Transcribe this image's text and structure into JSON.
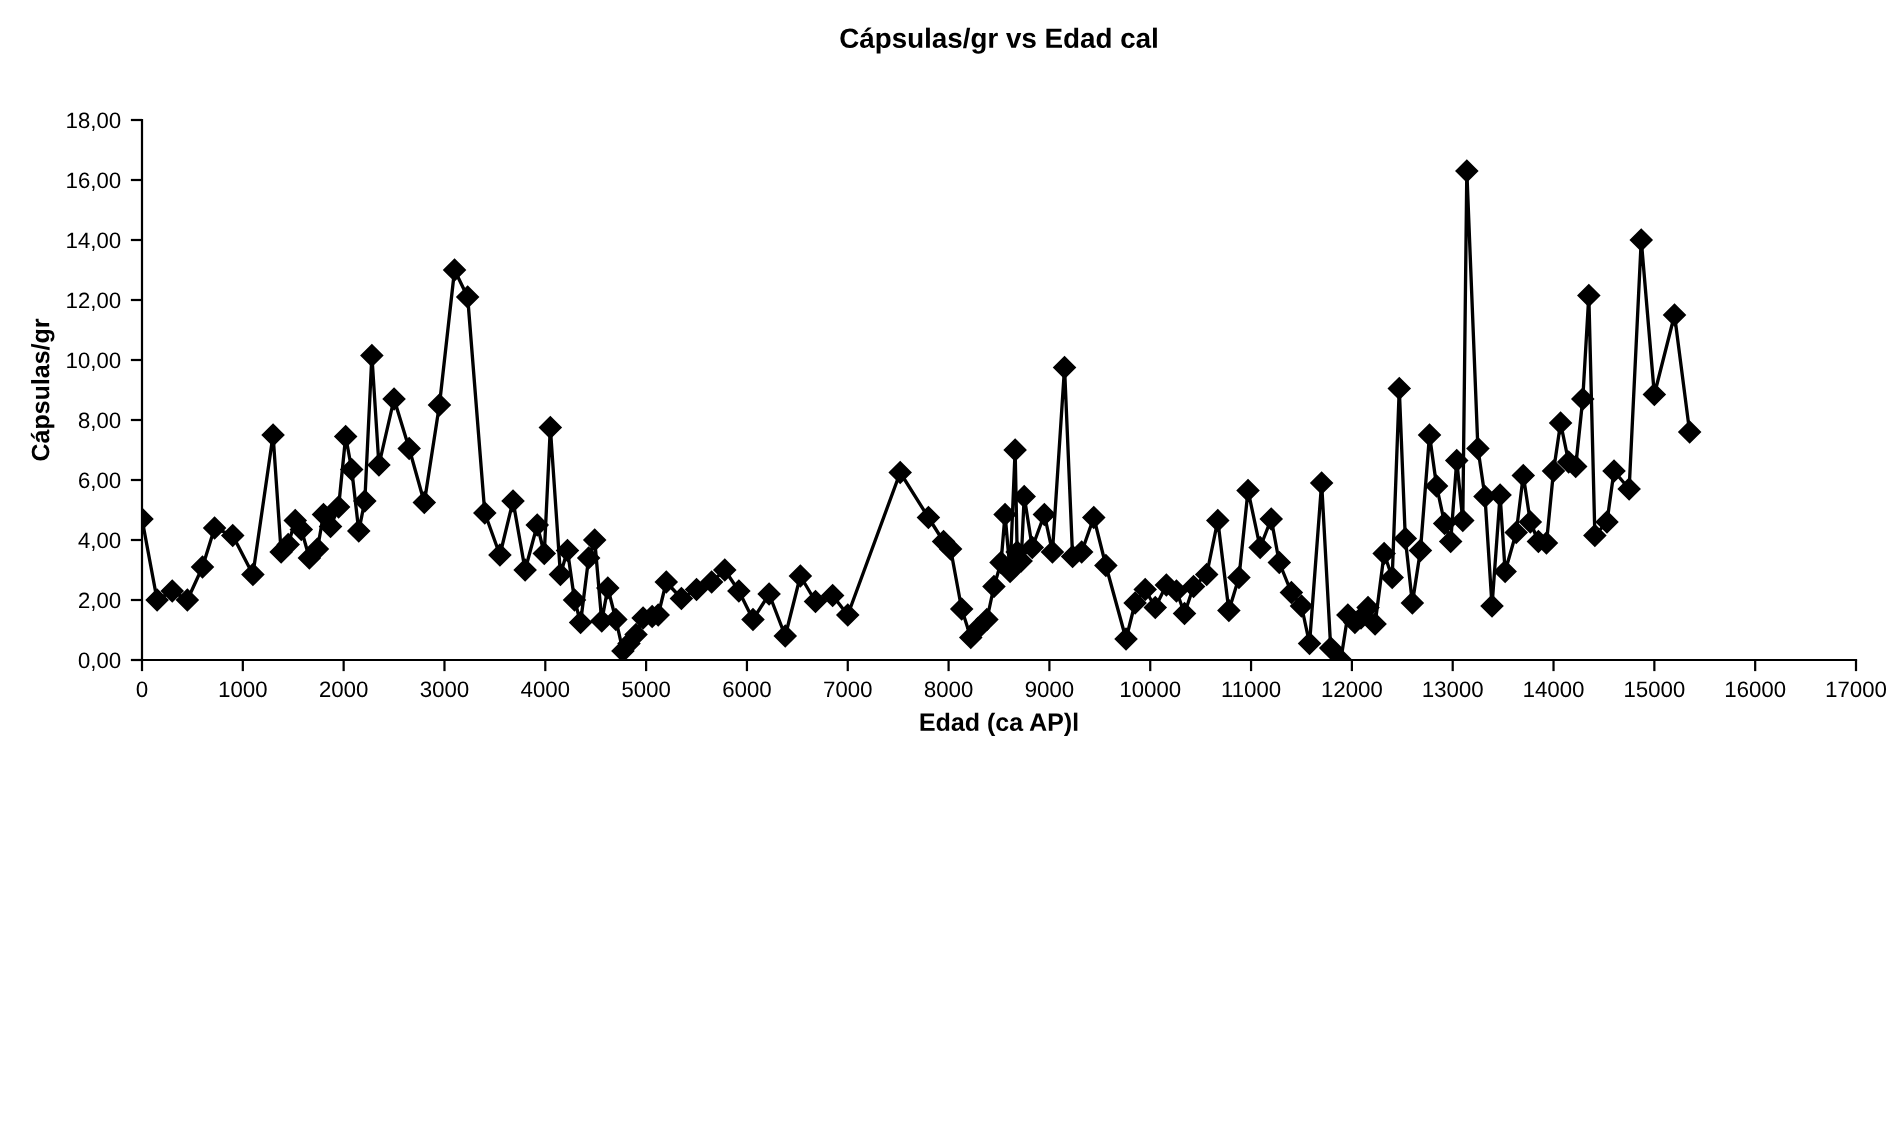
{
  "chart_data": {
    "type": "line",
    "title": "Cápsulas/gr vs Edad cal",
    "xlabel": "Edad (ca AP)l",
    "ylabel": "Cápsulas/gr",
    "x": [
      0,
      150,
      300,
      450,
      600,
      720,
      900,
      1100,
      1300,
      1380,
      1450,
      1520,
      1580,
      1660,
      1740,
      1800,
      1870,
      1950,
      2020,
      2080,
      2150,
      2210,
      2280,
      2350,
      2500,
      2650,
      2800,
      2950,
      3100,
      3230,
      3400,
      3550,
      3680,
      3800,
      3920,
      3990,
      4050,
      4150,
      4220,
      4290,
      4350,
      4430,
      4490,
      4560,
      4620,
      4700,
      4770,
      4830,
      4900,
      4970,
      5060,
      5120,
      5200,
      5350,
      5500,
      5650,
      5780,
      5920,
      6060,
      6220,
      6380,
      6530,
      6680,
      6850,
      7000,
      7520,
      7800,
      7950,
      8020,
      8130,
      8220,
      8290,
      8380,
      8450,
      8520,
      8560,
      8610,
      8660,
      8680,
      8720,
      8750,
      8830,
      8950,
      9030,
      9150,
      9230,
      9320,
      9440,
      9560,
      9760,
      9850,
      9950,
      10050,
      10160,
      10260,
      10340,
      10430,
      10560,
      10670,
      10780,
      10880,
      10970,
      11090,
      11200,
      11280,
      11400,
      11500,
      11580,
      11700,
      11790,
      11890,
      11960,
      12030,
      12090,
      12160,
      12230,
      12320,
      12400,
      12470,
      12530,
      12600,
      12680,
      12770,
      12840,
      12920,
      12980,
      13040,
      13100,
      13140,
      13250,
      13320,
      13390,
      13470,
      13520,
      13630,
      13700,
      13770,
      13850,
      13930,
      14000,
      14070,
      14150,
      14220,
      14290,
      14350,
      14410,
      14530,
      14600,
      14750,
      14870,
      15000,
      15200,
      15350
    ],
    "series": [
      {
        "color": "#000000",
        "values": [
          4.7,
          2.0,
          2.3,
          2.0,
          3.1,
          4.4,
          4.15,
          2.85,
          7.5,
          3.6,
          3.85,
          4.65,
          4.35,
          3.4,
          3.7,
          4.85,
          4.45,
          5.1,
          7.45,
          6.35,
          4.3,
          5.3,
          10.15,
          6.5,
          8.7,
          7.05,
          5.25,
          8.5,
          13.0,
          12.1,
          4.9,
          3.5,
          5.3,
          3.0,
          4.5,
          3.55,
          7.75,
          2.85,
          3.65,
          2.0,
          1.25,
          3.4,
          4.0,
          1.3,
          2.4,
          1.35,
          0.3,
          0.55,
          0.85,
          1.4,
          1.45,
          1.5,
          2.6,
          2.05,
          2.35,
          2.6,
          3.0,
          2.3,
          1.35,
          2.2,
          0.8,
          2.8,
          1.95,
          2.15,
          1.5,
          6.25,
          4.75,
          3.95,
          3.7,
          1.7,
          0.75,
          1.05,
          1.35,
          2.45,
          3.25,
          4.85,
          2.95,
          7.0,
          3.6,
          3.3,
          5.45,
          3.75,
          4.85,
          3.6,
          9.75,
          3.45,
          3.6,
          4.75,
          3.15,
          0.7,
          1.9,
          2.35,
          1.75,
          2.5,
          2.3,
          1.55,
          2.45,
          2.85,
          4.65,
          1.65,
          2.75,
          5.65,
          3.75,
          4.7,
          3.25,
          2.25,
          1.8,
          0.55,
          5.9,
          0.4,
          0.0,
          1.5,
          1.25,
          1.4,
          1.75,
          1.2,
          3.55,
          2.75,
          9.05,
          4.05,
          1.9,
          3.65,
          7.5,
          5.8,
          4.55,
          3.95,
          6.65,
          4.65,
          16.3,
          7.05,
          5.45,
          1.8,
          5.5,
          2.95,
          4.25,
          6.15,
          4.6,
          3.95,
          3.9,
          6.3,
          7.9,
          6.6,
          6.45,
          8.7,
          12.15,
          4.15,
          4.6,
          6.3,
          5.7,
          14.0,
          8.85,
          11.5,
          7.6
        ]
      }
    ],
    "xlim": [
      0,
      17000
    ],
    "xticks": [
      0,
      1000,
      2000,
      3000,
      4000,
      5000,
      6000,
      7000,
      8000,
      9000,
      10000,
      11000,
      12000,
      13000,
      14000,
      15000,
      16000,
      17000
    ],
    "ylim": [
      0,
      18
    ],
    "yticks": [
      {
        "value": 0,
        "label": "0,00"
      },
      {
        "value": 2,
        "label": "2,00"
      },
      {
        "value": 4,
        "label": "4,00"
      },
      {
        "value": 6,
        "label": "6,00"
      },
      {
        "value": 8,
        "label": "8,00"
      },
      {
        "value": 10,
        "label": "10,00"
      },
      {
        "value": 12,
        "label": "12,00"
      },
      {
        "value": 14,
        "label": "14,00"
      },
      {
        "value": 16,
        "label": "16,00"
      },
      {
        "value": 18,
        "label": "18,00"
      }
    ],
    "marker": "diamond",
    "line_style": "solid"
  }
}
